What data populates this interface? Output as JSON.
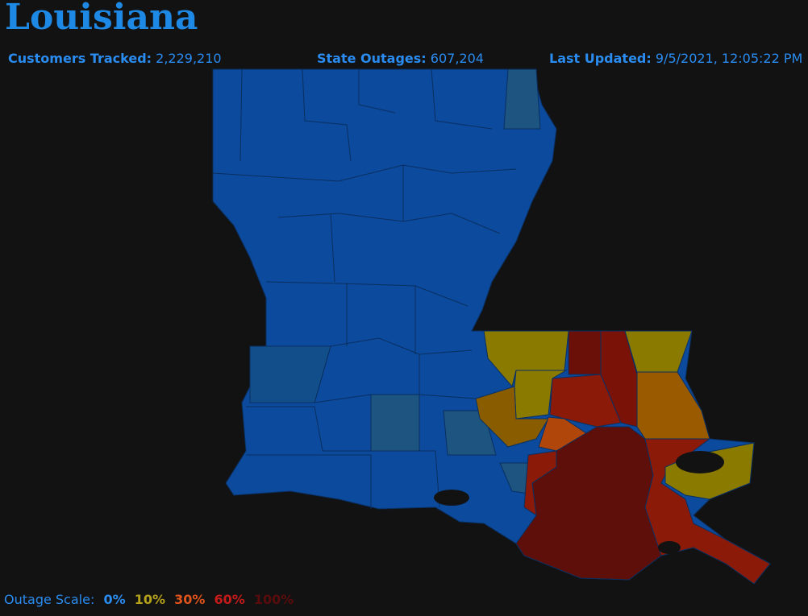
{
  "header": {
    "title": "Louisiana"
  },
  "stats": [
    {
      "label": "Customers Tracked:",
      "value": "2,229,210"
    },
    {
      "label": "State Outages:",
      "value": "607,204"
    },
    {
      "label": "Last Updated:",
      "value": "9/5/2021, 12:05:22 PM"
    }
  ],
  "legend": {
    "label": "Outage Scale:",
    "items": [
      "0%",
      "10%",
      "30%",
      "60%",
      "100%"
    ]
  }
}
